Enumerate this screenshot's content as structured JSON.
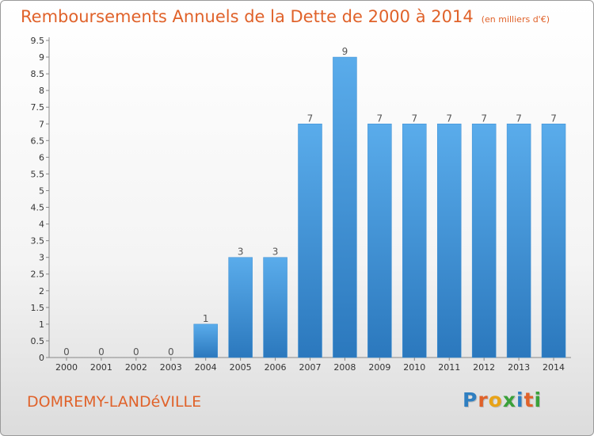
{
  "header": {
    "title": "Remboursements Annuels de la Dette de 2000 à 2014",
    "unit": "(en milliers d'€)"
  },
  "footer": {
    "commune": "DOMREMY-LANDéVILLE",
    "logo_text": "Proxiti",
    "logo_colors": [
      "#2f7fc1",
      "#e0622a",
      "#e8a317",
      "#3aa13a",
      "#2f7fc1",
      "#e0622a",
      "#3aa13a"
    ]
  },
  "chart_data": {
    "type": "bar",
    "categories": [
      "2000",
      "2001",
      "2002",
      "2003",
      "2004",
      "2005",
      "2006",
      "2007",
      "2008",
      "2009",
      "2010",
      "2011",
      "2012",
      "2013",
      "2014"
    ],
    "values": [
      0,
      0,
      0,
      0,
      1,
      3,
      3,
      7,
      9,
      7,
      7,
      7,
      7,
      7,
      7
    ],
    "data_labels": [
      "0",
      "0",
      "0",
      "0",
      "1",
      "3",
      "3",
      "7",
      "9",
      "7",
      "7",
      "7",
      "7",
      "7",
      "7"
    ],
    "y_ticks": [
      "0",
      "0.5",
      "1",
      "1.5",
      "2",
      "2.5",
      "3",
      "3.5",
      "4",
      "4.5",
      "5",
      "5.5",
      "6",
      "6.5",
      "7",
      "7.5",
      "8",
      "8.5",
      "9",
      "9.5"
    ],
    "ylim": [
      0,
      9.5
    ],
    "grid": false,
    "bar_color": "#4a9ee0"
  }
}
